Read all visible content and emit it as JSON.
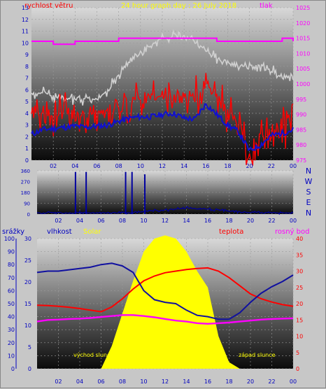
{
  "colors": {
    "background": "#c7c7c7",
    "wind": "#ff0000",
    "gust_line": "#ff0000",
    "pressure": "#ff00ff",
    "temperature": "#d0d0d0",
    "dir": "#0000a0",
    "humidity": "#1010a0",
    "temp2": "#ff0000",
    "dewpoint": "#ff00ff",
    "solar": "#ffff00",
    "axis_text": "#0000c0",
    "left_title": "#ff0000",
    "center_title": "#ffff00",
    "right_title": "#ff00ff"
  },
  "panel_top": {
    "title_left": "rychlost větru",
    "title_center": "24 hour graph day : 26 July 2018",
    "title_right": "tlak",
    "y_left_ticks": [
      "0",
      "1",
      "2",
      "3",
      "4",
      "5",
      "6",
      "7",
      "8",
      "9",
      "10",
      "11",
      "12",
      "13"
    ],
    "y_right_ticks": [
      "975",
      "980",
      "985",
      "990",
      "995",
      "1000",
      "1005",
      "1010",
      "1015",
      "1020",
      "1025"
    ],
    "x_ticks": [
      "02",
      "04",
      "06",
      "08",
      "10",
      "12",
      "14",
      "16",
      "18",
      "20",
      "22",
      "00"
    ]
  },
  "panel_dir": {
    "y_ticks": [
      "0",
      "90",
      "180",
      "270",
      "360"
    ],
    "compass": [
      "N",
      "W",
      "S",
      "E",
      "N"
    ],
    "x_ticks": [
      "02",
      "04",
      "06",
      "08",
      "10",
      "12",
      "14",
      "16",
      "18",
      "20",
      "22",
      "00"
    ]
  },
  "panel_bottom": {
    "label_rain": "srážky",
    "label_humidity": "vlhkost",
    "label_solar": "Solar",
    "label_temp": "teplota",
    "label_dew": "rosný bod",
    "y_rain_ticks": [
      "0",
      "10",
      "20",
      "30",
      "40",
      "50",
      "60",
      "70",
      "80",
      "90",
      "100"
    ],
    "y_mm_ticks": [
      "0",
      "5",
      "10",
      "15",
      "20",
      "25",
      "30"
    ],
    "y_temp_ticks": [
      "0",
      "5",
      "10",
      "15",
      "20",
      "25",
      "30",
      "35",
      "40"
    ],
    "x_ticks": [
      "02",
      "04",
      "06",
      "08",
      "10",
      "12",
      "14",
      "16",
      "18",
      "20",
      "22",
      "00"
    ],
    "sunrise": "východ slunce",
    "sunset": "západ slunce"
  },
  "chart_data": [
    {
      "type": "line",
      "title": "24 hour graph day : 26 July 2018",
      "x_hours": [
        0,
        1,
        2,
        3,
        4,
        5,
        6,
        7,
        8,
        9,
        10,
        11,
        12,
        13,
        14,
        15,
        16,
        17,
        18,
        19,
        20,
        21,
        22,
        23,
        24
      ],
      "ylim_wind": [
        0,
        13
      ],
      "ylim_pressure": [
        975,
        1025
      ],
      "series": [
        {
          "name": "rychlost větru",
          "values": [
            3.8,
            3.7,
            3.8,
            3.9,
            3.9,
            3.9,
            4.0,
            4.2,
            4.6,
            4.9,
            5.2,
            5.5,
            5.4,
            5.6,
            5.4,
            5.6,
            6.2,
            5.4,
            3.9,
            3.3,
            0.5,
            1.6,
            2.5,
            2.7,
            3.4
          ]
        },
        {
          "values": [
            2.2,
            2.6,
            2.7,
            2.8,
            2.9,
            2.8,
            2.9,
            3.0,
            3.3,
            3.6,
            3.7,
            3.7,
            3.9,
            4.0,
            3.6,
            3.5,
            4.8,
            3.9,
            3.0,
            2.4,
            0.8,
            1.3,
            2.1,
            2.3,
            2.6
          ]
        },
        {
          "name": "tlak",
          "values": [
            1014,
            1014,
            1013,
            1013,
            1014,
            1014,
            1014,
            1014,
            1015,
            1015,
            1015,
            1015,
            1015,
            1015,
            1015,
            1015,
            1015,
            1014,
            1014,
            1014,
            1014,
            1014,
            1014,
            1015,
            1014
          ]
        },
        {
          "values": [
            997,
            997,
            996,
            995,
            995,
            995,
            995,
            998,
            1003,
            1007,
            1010,
            1013,
            1015,
            1016,
            1016,
            1014,
            1011,
            1008,
            1007,
            1006,
            1006,
            1006,
            1004,
            1002,
            1002
          ]
        }
      ]
    },
    {
      "type": "line",
      "title": "",
      "x_hours": [
        0,
        1,
        2,
        3,
        4,
        5,
        6,
        7,
        8,
        9,
        10,
        11,
        12,
        13,
        14,
        15,
        16,
        17,
        18,
        19,
        20,
        21,
        22,
        23,
        24
      ],
      "ylim": [
        0,
        360
      ],
      "series": [
        {
          "values": [
            10,
            12,
            10,
            8,
            12,
            10,
            10,
            12,
            14,
            12,
            20,
            30,
            35,
            40,
            50,
            45,
            40,
            35,
            25,
            18,
            15,
            12,
            12,
            10,
            10
          ]
        }
      ]
    },
    {
      "type": "line",
      "title": "",
      "x_hours": [
        0,
        1,
        2,
        3,
        4,
        5,
        6,
        7,
        8,
        9,
        10,
        11,
        12,
        13,
        14,
        15,
        16,
        17,
        18,
        19,
        20,
        21,
        22,
        23,
        24
      ],
      "ylim_humidity": [
        0,
        100
      ],
      "ylim_temp": [
        0,
        40
      ],
      "series": [
        {
          "name": "vlhkost",
          "values": [
            74,
            75,
            75,
            76,
            77,
            78,
            80,
            81,
            79,
            74,
            60,
            53,
            51,
            50,
            45,
            41,
            40,
            38,
            38,
            43,
            51,
            58,
            63,
            67,
            72
          ]
        },
        {
          "name": "teplota",
          "values": [
            19.5,
            19.4,
            19.2,
            18.9,
            18.5,
            18.0,
            17.5,
            19,
            21.5,
            24.5,
            27,
            28.5,
            29.5,
            30,
            30.5,
            30.8,
            31,
            30,
            28,
            25.5,
            23,
            21.5,
            20.5,
            19.7,
            19.2
          ]
        },
        {
          "name": "rosný bod",
          "values": [
            14.5,
            15.0,
            15.1,
            15.3,
            15.4,
            15.6,
            15.9,
            16.2,
            16.5,
            16.5,
            16.2,
            15.8,
            15.3,
            14.8,
            14.5,
            14.0,
            13.8,
            14.0,
            14.2,
            14.5,
            14.8,
            15.1,
            15.3,
            15.4,
            15.5
          ]
        },
        {
          "name": "Solar",
          "values": [
            0,
            0,
            0,
            0,
            0,
            0,
            0,
            7,
            17,
            27,
            36,
            40,
            41,
            40,
            36,
            30,
            25,
            10,
            2,
            0,
            0,
            0,
            0,
            0,
            0
          ]
        }
      ]
    }
  ]
}
